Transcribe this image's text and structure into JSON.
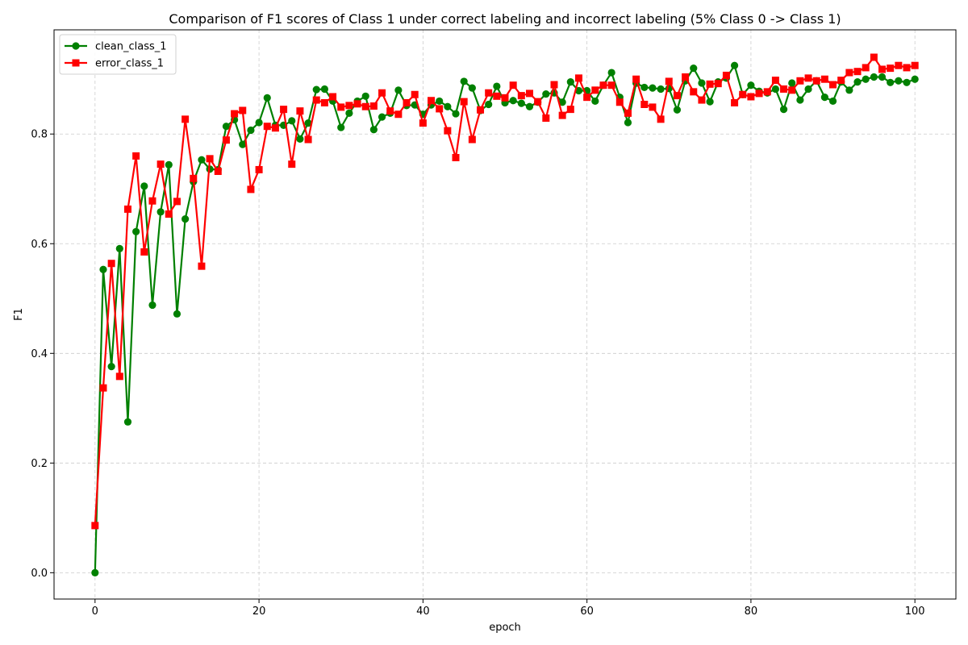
{
  "chart_data": {
    "type": "line",
    "title": "Comparison of F1 scores of Class 1 under correct labeling and incorrect labeling (5% Class 0 -> Class 1)",
    "xlabel": "epoch",
    "ylabel": "F1",
    "xlim": [
      -5,
      105
    ],
    "ylim": [
      -0.048,
      0.99
    ],
    "xticks": [
      0,
      20,
      40,
      60,
      80,
      100
    ],
    "yticks": [
      0.0,
      0.2,
      0.4,
      0.6,
      0.8
    ],
    "ytick_labels": [
      "0.0",
      "0.2",
      "0.4",
      "0.6",
      "0.8"
    ],
    "grid": true,
    "legend_position": "top-left",
    "series": [
      {
        "name": "clean_class_1",
        "color": "#008000",
        "marker": "circle",
        "values": [
          0.0,
          0.553,
          0.376,
          0.591,
          0.275,
          0.622,
          0.705,
          0.488,
          0.658,
          0.744,
          0.472,
          0.645,
          0.713,
          0.753,
          0.736,
          0.735,
          0.814,
          0.826,
          0.781,
          0.807,
          0.821,
          0.866,
          0.816,
          0.816,
          0.824,
          0.791,
          0.82,
          0.881,
          0.882,
          0.86,
          0.812,
          0.838,
          0.86,
          0.869,
          0.808,
          0.831,
          0.838,
          0.88,
          0.852,
          0.853,
          0.836,
          0.853,
          0.86,
          0.85,
          0.837,
          0.896,
          0.884,
          0.843,
          0.854,
          0.887,
          0.857,
          0.861,
          0.856,
          0.85,
          0.858,
          0.873,
          0.875,
          0.858,
          0.895,
          0.879,
          0.879,
          0.86,
          0.889,
          0.912,
          0.867,
          0.821,
          0.893,
          0.885,
          0.884,
          0.882,
          0.883,
          0.844,
          0.897,
          0.92,
          0.893,
          0.859,
          0.895,
          0.902,
          0.925,
          0.872,
          0.889,
          0.878,
          0.875,
          0.882,
          0.845,
          0.893,
          0.862,
          0.882,
          0.897,
          0.867,
          0.86,
          0.895,
          0.88,
          0.895,
          0.9,
          0.904,
          0.904,
          0.894,
          0.897,
          0.894,
          0.9
        ]
      },
      {
        "name": "error_class_1",
        "color": "#ff0000",
        "marker": "square",
        "values": [
          0.086,
          0.337,
          0.564,
          0.358,
          0.663,
          0.76,
          0.585,
          0.678,
          0.745,
          0.654,
          0.677,
          0.827,
          0.719,
          0.559,
          0.755,
          0.732,
          0.789,
          0.837,
          0.843,
          0.699,
          0.735,
          0.814,
          0.811,
          0.845,
          0.745,
          0.842,
          0.79,
          0.862,
          0.857,
          0.868,
          0.849,
          0.852,
          0.855,
          0.85,
          0.851,
          0.875,
          0.842,
          0.836,
          0.857,
          0.872,
          0.82,
          0.861,
          0.846,
          0.806,
          0.757,
          0.859,
          0.79,
          0.844,
          0.875,
          0.869,
          0.866,
          0.889,
          0.87,
          0.874,
          0.859,
          0.829,
          0.89,
          0.834,
          0.845,
          0.902,
          0.867,
          0.88,
          0.889,
          0.889,
          0.858,
          0.838,
          0.9,
          0.854,
          0.849,
          0.827,
          0.896,
          0.87,
          0.904,
          0.877,
          0.862,
          0.891,
          0.892,
          0.907,
          0.857,
          0.872,
          0.868,
          0.874,
          0.877,
          0.898,
          0.882,
          0.88,
          0.897,
          0.902,
          0.897,
          0.9,
          0.89,
          0.898,
          0.912,
          0.914,
          0.921,
          0.94,
          0.918,
          0.92,
          0.925,
          0.921,
          0.925
        ]
      }
    ]
  }
}
